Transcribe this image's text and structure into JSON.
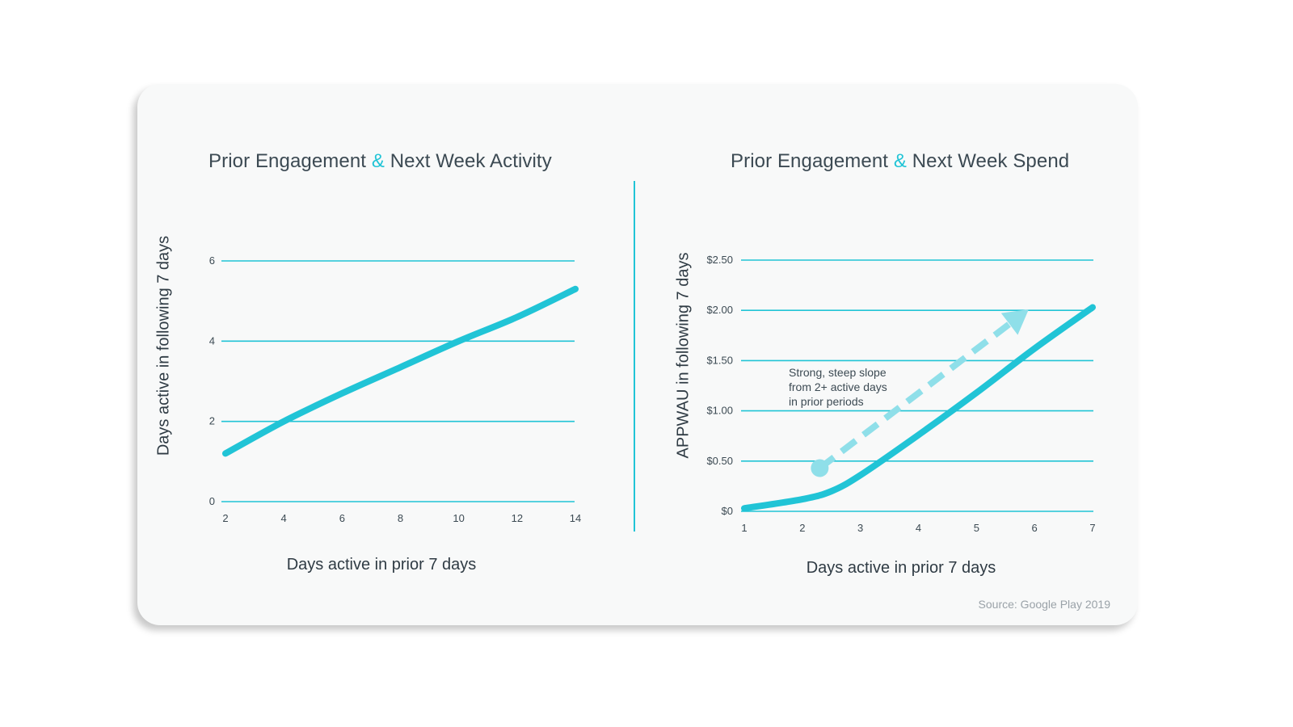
{
  "colors": {
    "accent": "#21c4d6",
    "dashed_arrow": "#8fdfe9",
    "text": "#3c4a53",
    "card_background": "#f8f9f9"
  },
  "source": "Source: Google Play 2019",
  "chart_data": [
    {
      "type": "line",
      "title_part1": "Prior Engagement",
      "title_amp": "&",
      "title_part2": "Next Week Activity",
      "xlabel": "Days active in prior 7 days",
      "ylabel": "Days active in following 7 days",
      "x_ticks": [
        "2",
        "4",
        "6",
        "8",
        "10",
        "12",
        "14"
      ],
      "y_ticks": [
        "0",
        "2",
        "4",
        "6"
      ],
      "xlim": [
        2,
        14
      ],
      "ylim": [
        0,
        6
      ],
      "grid": true,
      "series": [
        {
          "x": [
            2,
            4,
            6,
            8,
            10,
            12,
            14
          ],
          "y": [
            1.2,
            2.0,
            2.7,
            3.35,
            4.0,
            4.6,
            5.3
          ]
        }
      ]
    },
    {
      "type": "line",
      "title_part1": "Prior Engagement",
      "title_amp": "&",
      "title_part2": "Next Week Spend",
      "xlabel": "Days active in prior 7 days",
      "ylabel": "APPWAU in following 7 days",
      "x_ticks": [
        "1",
        "2",
        "3",
        "4",
        "5",
        "6",
        "7"
      ],
      "y_ticks": [
        "$0",
        "$0.50",
        "$1.00",
        "$1.50",
        "$2.00",
        "$2.50"
      ],
      "xlim": [
        1,
        7
      ],
      "ylim": [
        0,
        2.5
      ],
      "grid": true,
      "series": [
        {
          "x": [
            1,
            2,
            2.5,
            3,
            4,
            5,
            6,
            7
          ],
          "y": [
            0.03,
            0.12,
            0.2,
            0.36,
            0.76,
            1.18,
            1.62,
            2.03
          ]
        }
      ],
      "annotation": {
        "lines": [
          "Strong, steep slope",
          "from 2+ active days",
          "in prior periods"
        ],
        "arrow_start": [
          2.3,
          0.43
        ],
        "arrow_end": [
          5.9,
          2.01
        ]
      }
    }
  ]
}
